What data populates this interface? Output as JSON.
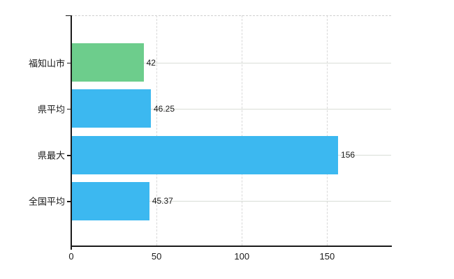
{
  "chart_data": {
    "type": "bar",
    "orientation": "horizontal",
    "title": "",
    "xlabel": "",
    "ylabel": "",
    "categories": [
      "福知山市",
      "県平均",
      "県最大",
      "全国平均"
    ],
    "values": [
      42,
      46.25,
      156,
      45.37
    ],
    "value_labels": [
      "42",
      "46.25",
      "156",
      "45.37"
    ],
    "bar_colors": [
      "#6dcd8c",
      "#3cb8f0",
      "#3cb8f0",
      "#3cb8f0"
    ],
    "xlim": [
      0,
      187.5
    ],
    "x_ticks": [
      0,
      50,
      100,
      150
    ],
    "x_tick_labels": [
      "0",
      "50",
      "100",
      "150"
    ],
    "grid": {
      "vertical": "dashed at x ticks",
      "horizontal": "solid at category centers",
      "top_border": "dashed"
    },
    "legend": "none"
  },
  "colors": {
    "background": "#ffffff",
    "axis": "#1a1a1a",
    "text": "#1a1a1a",
    "gridline_solid": "#d9ddd7",
    "gridline_dashed": "#d8d8d8",
    "bar_highlight": "#6dcd8c",
    "bar_default": "#3cb8f0"
  }
}
